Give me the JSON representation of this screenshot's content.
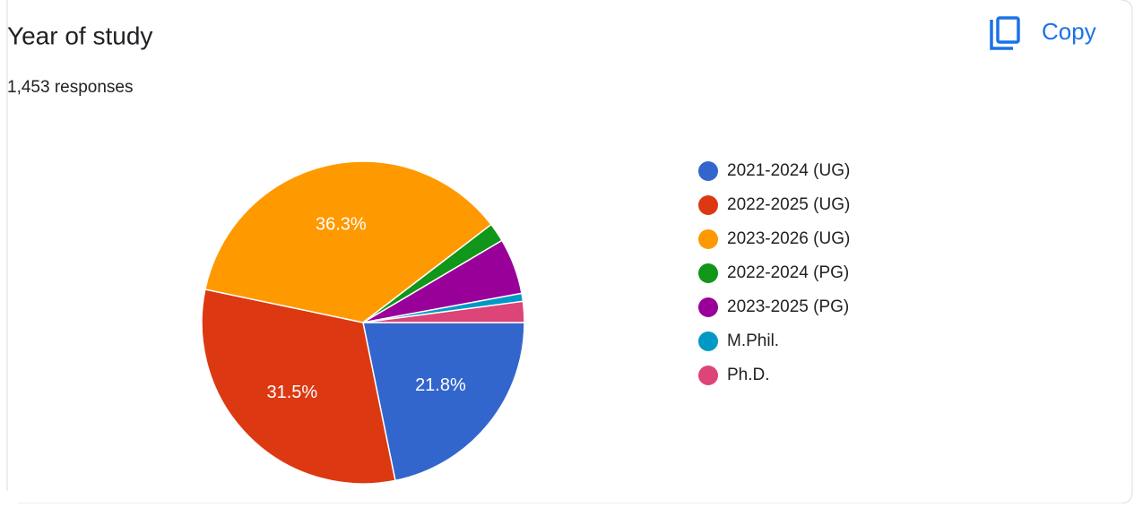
{
  "title": "Year of study",
  "subtitle": "1,453 responses",
  "button": "Copy",
  "chart_data": {
    "type": "pie",
    "categories": [
      "2021-2024 (UG)",
      "2022-2025 (UG)",
      "2023-2026 (UG)",
      "2022-2024 (PG)",
      "2023-2025 (PG)",
      "M.Phil.",
      "Ph.D."
    ],
    "values": [
      21.8,
      31.5,
      36.3,
      1.9,
      5.6,
      0.8,
      2.1
    ],
    "value_labels": [
      "21.8%",
      "31.5%",
      "36.3%",
      null,
      null,
      null,
      null
    ],
    "colors": [
      "#3366cc",
      "#dc3912",
      "#ff9900",
      "#109618",
      "#990099",
      "#0099c6",
      "#dd4477"
    ],
    "legend": "right"
  }
}
